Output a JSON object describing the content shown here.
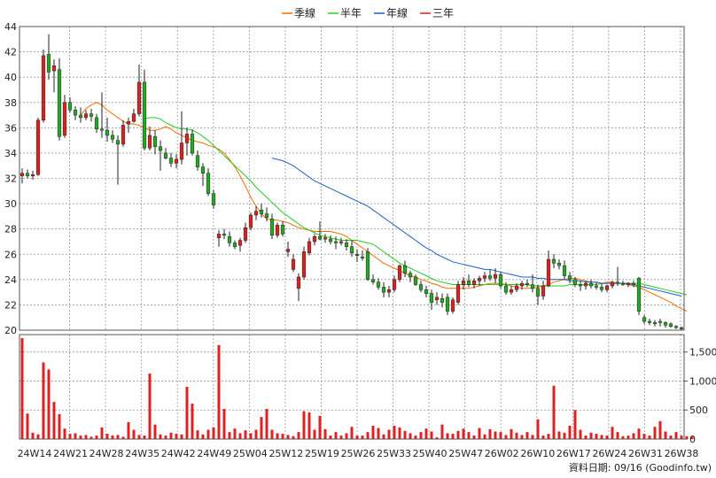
{
  "chart_data": [
    {
      "type": "candlestick",
      "title": "",
      "legend": {
        "placement": "top-center",
        "entries": [
          {
            "name": "季線",
            "color": "#ff6a00"
          },
          {
            "name": "半年",
            "color": "#22cc22"
          },
          {
            "name": "年線",
            "color": "#1a5fcc"
          },
          {
            "name": "三年",
            "color": "#e02020"
          }
        ]
      },
      "ylim": [
        20,
        44
      ],
      "yticks": [
        20,
        22,
        24,
        26,
        28,
        30,
        32,
        34,
        36,
        38,
        40,
        42,
        44
      ],
      "grid": true,
      "x_labels": [
        "24W14",
        "24W21",
        "24W28",
        "24W35",
        "24W42",
        "24W49",
        "25W04",
        "25W12",
        "25W19",
        "25W26",
        "25W33",
        "25W40",
        "25W47",
        "26W02",
        "26W10",
        "26W17",
        "26W24",
        "26W31",
        "26W38"
      ],
      "candles": [
        [
          32.2,
          32.8,
          31.6,
          32.4
        ],
        [
          32.4,
          32.7,
          32.0,
          32.2
        ],
        [
          32.2,
          32.6,
          31.9,
          32.3
        ],
        [
          32.3,
          36.8,
          32.2,
          36.6
        ],
        [
          36.6,
          42.2,
          36.4,
          41.7
        ],
        [
          41.8,
          43.4,
          39.8,
          40.4
        ],
        [
          40.5,
          41.4,
          38.8,
          40.9
        ],
        [
          40.6,
          41.5,
          35.0,
          35.3
        ],
        [
          35.4,
          38.6,
          35.2,
          38.0
        ],
        [
          38.0,
          38.4,
          37.2,
          37.4
        ],
        [
          37.4,
          37.7,
          36.6,
          37.0
        ],
        [
          37.0,
          37.6,
          36.4,
          36.8
        ],
        [
          36.8,
          37.4,
          36.6,
          37.1
        ],
        [
          37.1,
          37.5,
          36.5,
          36.9
        ],
        [
          36.8,
          37.1,
          35.6,
          35.9
        ],
        [
          35.9,
          38.8,
          35.2,
          35.8
        ],
        [
          35.8,
          36.8,
          34.9,
          35.4
        ],
        [
          35.4,
          35.8,
          34.8,
          35.1
        ],
        [
          35.0,
          35.4,
          31.5,
          34.7
        ],
        [
          34.7,
          36.6,
          34.5,
          36.2
        ],
        [
          36.3,
          36.8,
          35.6,
          36.5
        ],
        [
          36.5,
          37.5,
          36.4,
          37.1
        ],
        [
          37.1,
          41.0,
          36.9,
          39.6
        ],
        [
          39.6,
          40.6,
          34.2,
          34.4
        ],
        [
          34.4,
          36.1,
          34.2,
          35.4
        ],
        [
          35.3,
          35.8,
          33.9,
          34.5
        ],
        [
          34.5,
          35.0,
          32.6,
          34.2
        ],
        [
          34.0,
          34.4,
          33.5,
          33.6
        ],
        [
          33.6,
          34.0,
          32.9,
          33.2
        ],
        [
          33.2,
          33.9,
          32.8,
          33.5
        ],
        [
          33.5,
          37.3,
          33.1,
          34.8
        ],
        [
          34.8,
          36.0,
          33.8,
          35.5
        ],
        [
          35.5,
          35.9,
          33.8,
          34.0
        ],
        [
          33.8,
          34.2,
          32.6,
          32.9
        ],
        [
          32.9,
          33.2,
          31.4,
          32.4
        ],
        [
          32.4,
          32.8,
          30.6,
          30.8
        ],
        [
          30.8,
          31.1,
          29.6,
          29.9
        ],
        [
          27.3,
          27.9,
          26.6,
          27.6
        ],
        [
          27.6,
          28.0,
          27.2,
          27.5
        ],
        [
          27.4,
          27.8,
          26.6,
          26.9
        ],
        [
          26.9,
          27.1,
          26.4,
          26.6
        ],
        [
          26.7,
          27.3,
          26.2,
          27.1
        ],
        [
          27.1,
          28.5,
          26.9,
          28.1
        ],
        [
          28.1,
          29.3,
          27.9,
          29.1
        ],
        [
          29.1,
          29.8,
          28.7,
          29.4
        ],
        [
          29.5,
          30.0,
          28.9,
          29.2
        ],
        [
          29.2,
          29.7,
          28.6,
          28.9
        ],
        [
          28.8,
          29.2,
          27.2,
          27.5
        ],
        [
          27.5,
          28.5,
          27.3,
          28.3
        ],
        [
          28.3,
          28.6,
          27.4,
          27.6
        ],
        [
          26.2,
          27.0,
          25.8,
          26.4
        ],
        [
          24.8,
          26.0,
          24.6,
          25.6
        ],
        [
          23.3,
          24.5,
          22.3,
          24.2
        ],
        [
          24.2,
          26.6,
          24.0,
          26.2
        ],
        [
          26.1,
          27.3,
          25.9,
          27.0
        ],
        [
          27.0,
          27.6,
          26.7,
          27.4
        ],
        [
          27.4,
          28.6,
          27.1,
          27.2
        ],
        [
          27.2,
          27.6,
          26.9,
          27.3
        ],
        [
          27.2,
          27.5,
          26.8,
          27.0
        ],
        [
          27.0,
          27.4,
          26.4,
          26.9
        ],
        [
          26.9,
          27.3,
          26.7,
          27.0
        ],
        [
          26.9,
          27.2,
          26.3,
          26.6
        ],
        [
          26.6,
          27.1,
          25.8,
          26.1
        ],
        [
          26.0,
          26.4,
          25.4,
          25.9
        ],
        [
          25.8,
          26.3,
          25.5,
          25.7
        ],
        [
          26.2,
          26.5,
          23.9,
          24.0
        ],
        [
          24.0,
          24.4,
          23.6,
          23.8
        ],
        [
          23.8,
          24.1,
          23.2,
          23.4
        ],
        [
          23.4,
          23.8,
          22.6,
          23.0
        ],
        [
          23.0,
          23.5,
          22.6,
          23.2
        ],
        [
          23.2,
          24.3,
          23.0,
          24.0
        ],
        [
          24.0,
          25.2,
          23.8,
          25.1
        ],
        [
          25.1,
          25.5,
          24.2,
          24.5
        ],
        [
          24.5,
          24.7,
          23.8,
          24.2
        ],
        [
          24.2,
          24.4,
          23.5,
          23.6
        ],
        [
          23.6,
          23.9,
          23.0,
          23.2
        ],
        [
          23.2,
          23.5,
          22.6,
          22.9
        ],
        [
          22.9,
          23.2,
          21.6,
          22.2
        ],
        [
          22.4,
          23.0,
          22.0,
          22.6
        ],
        [
          22.5,
          22.9,
          21.8,
          22.2
        ],
        [
          22.6,
          22.9,
          21.2,
          21.5
        ],
        [
          21.5,
          22.6,
          21.3,
          22.4
        ],
        [
          22.2,
          23.9,
          22.0,
          23.6
        ],
        [
          23.6,
          24.2,
          23.2,
          23.9
        ],
        [
          23.9,
          24.4,
          23.4,
          23.6
        ],
        [
          23.6,
          24.1,
          23.3,
          23.9
        ],
        [
          23.9,
          24.3,
          23.5,
          24.1
        ],
        [
          24.1,
          24.6,
          23.8,
          24.3
        ],
        [
          24.3,
          24.8,
          23.9,
          24.1
        ],
        [
          24.1,
          24.9,
          23.7,
          24.4
        ],
        [
          24.4,
          24.6,
          23.3,
          23.5
        ],
        [
          23.5,
          23.8,
          22.8,
          23.0
        ],
        [
          23.0,
          23.5,
          22.8,
          23.2
        ],
        [
          23.2,
          23.7,
          23.0,
          23.5
        ],
        [
          23.5,
          23.9,
          23.2,
          23.7
        ],
        [
          23.7,
          24.0,
          23.4,
          23.6
        ],
        [
          23.6,
          24.4,
          23.0,
          23.3
        ],
        [
          23.3,
          23.6,
          22.0,
          22.7
        ],
        [
          22.7,
          23.9,
          22.4,
          23.5
        ],
        [
          23.5,
          26.3,
          23.4,
          25.6
        ],
        [
          25.6,
          26.0,
          24.9,
          25.3
        ],
        [
          25.3,
          25.6,
          24.8,
          25.1
        ],
        [
          25.1,
          25.5,
          24.0,
          24.3
        ],
        [
          24.3,
          24.6,
          23.7,
          24.0
        ],
        [
          24.0,
          24.2,
          23.4,
          23.6
        ],
        [
          23.6,
          23.9,
          23.1,
          23.5
        ],
        [
          23.5,
          23.9,
          23.2,
          23.7
        ],
        [
          23.7,
          24.0,
          23.3,
          23.5
        ],
        [
          23.5,
          23.8,
          23.2,
          23.4
        ],
        [
          23.4,
          23.7,
          23.0,
          23.2
        ],
        [
          23.2,
          23.6,
          23.0,
          23.5
        ],
        [
          23.5,
          23.9,
          23.3,
          23.8
        ],
        [
          23.8,
          25.0,
          23.5,
          23.7
        ],
        [
          23.7,
          23.9,
          23.5,
          23.6
        ],
        [
          23.6,
          23.8,
          23.4,
          23.7
        ],
        [
          23.7,
          23.9,
          23.4,
          23.6
        ],
        [
          24.1,
          24.2,
          21.2,
          21.5
        ],
        [
          21.0,
          21.2,
          20.5,
          20.7
        ],
        [
          20.7,
          20.9,
          20.4,
          20.6
        ],
        [
          20.6,
          20.8,
          20.3,
          20.5
        ],
        [
          20.7,
          20.9,
          20.3,
          20.6
        ],
        [
          20.6,
          20.7,
          20.2,
          20.4
        ],
        [
          20.5,
          20.6,
          20.2,
          20.3
        ],
        [
          20.3,
          20.4,
          20.1,
          20.2
        ],
        [
          20.2,
          20.3,
          20.0,
          20.1
        ]
      ],
      "series": [
        {
          "name": "季線",
          "color": "#ff6a00",
          "start": 11,
          "values": [
            37.0,
            37.5,
            37.8,
            38.0,
            37.8,
            37.4,
            37.1,
            36.8,
            36.5,
            36.3,
            36.3,
            36.2,
            36.0,
            35.8,
            35.8,
            35.9,
            36.1,
            35.9,
            35.6,
            35.4,
            35.2,
            35.0,
            34.9,
            34.8,
            34.6,
            34.5,
            34.3,
            34.0,
            33.5,
            32.9,
            32.2,
            31.4,
            30.5,
            29.8,
            29.2,
            28.8,
            28.7,
            28.7,
            28.6,
            28.5,
            28.3,
            28.1,
            28.0,
            27.9,
            27.8,
            27.8,
            27.8,
            27.8,
            27.7,
            27.6,
            27.4,
            27.1,
            26.8,
            26.5,
            26.2,
            25.9,
            25.6,
            25.3,
            25.1,
            24.9,
            24.7,
            24.5,
            24.3,
            24.2,
            24.0,
            23.9,
            23.7,
            23.6,
            23.4,
            23.3,
            23.3,
            23.3,
            23.3,
            23.3,
            23.4,
            23.5,
            23.6,
            23.7,
            23.7,
            23.7,
            23.6,
            23.5,
            23.4,
            23.3,
            23.3,
            23.3,
            23.4,
            23.5,
            23.6,
            23.8,
            23.9,
            24.0,
            24.1,
            24.1,
            24.0,
            23.9,
            23.8,
            23.8,
            23.7,
            23.8,
            23.8,
            23.7,
            23.7,
            23.6,
            23.5,
            23.4,
            23.2,
            23.0,
            22.8,
            22.6,
            22.4,
            22.2,
            21.9,
            21.7,
            21.5
          ]
        },
        {
          "name": "半年",
          "color": "#22cc22",
          "start": 23,
          "values": [
            36.7,
            36.8,
            36.8,
            36.7,
            36.4,
            36.2,
            36.0,
            35.9,
            35.9,
            35.8,
            35.6,
            35.3,
            35.0,
            34.6,
            34.2,
            33.8,
            33.4,
            33.0,
            32.6,
            32.2,
            31.8,
            31.3,
            30.9,
            30.5,
            30.1,
            29.7,
            29.3,
            29.0,
            28.7,
            28.4,
            28.1,
            27.9,
            27.7,
            27.5,
            27.4,
            27.3,
            27.2,
            27.1,
            27.1,
            27.1,
            27.1,
            27.0,
            26.9,
            26.8,
            26.5,
            26.2,
            25.9,
            25.6,
            25.3,
            25.1,
            24.9,
            24.7,
            24.5,
            24.3,
            24.1,
            23.9,
            23.8,
            23.7,
            23.6,
            23.6,
            23.6,
            23.6,
            23.6,
            23.6,
            23.6,
            23.6,
            23.6,
            23.6,
            23.6,
            23.6,
            23.6,
            23.6,
            23.6,
            23.5,
            23.5,
            23.5,
            23.5,
            23.5,
            23.5,
            23.5,
            23.6,
            23.6,
            23.6,
            23.6,
            23.6,
            23.6,
            23.7,
            23.7,
            23.7,
            23.7,
            23.7,
            23.7,
            23.7,
            23.7,
            23.6,
            23.5,
            23.4,
            23.3,
            23.2,
            23.1,
            23.0,
            22.9,
            22.8
          ]
        },
        {
          "name": "年線",
          "color": "#1a5fcc",
          "start": 47,
          "values": [
            33.6,
            33.5,
            33.4,
            33.2,
            33.0,
            32.7,
            32.4,
            32.1,
            31.8,
            31.6,
            31.4,
            31.2,
            31.0,
            30.8,
            30.6,
            30.4,
            30.2,
            30.0,
            29.8,
            29.5,
            29.2,
            28.9,
            28.6,
            28.3,
            28.0,
            27.7,
            27.4,
            27.1,
            26.8,
            26.5,
            26.3,
            26.0,
            25.8,
            25.6,
            25.4,
            25.3,
            25.2,
            25.1,
            25.0,
            24.9,
            24.8,
            24.8,
            24.7,
            24.6,
            24.5,
            24.4,
            24.3,
            24.2,
            24.2,
            24.2,
            24.1,
            24.1,
            24.0,
            24.0,
            24.0,
            24.0,
            23.9,
            23.9,
            23.9,
            23.8,
            23.8,
            23.8,
            23.7,
            23.7,
            23.7,
            23.7,
            23.7,
            23.7,
            23.6,
            23.5,
            23.4,
            23.3,
            23.2,
            23.1,
            23.0,
            22.9,
            22.8,
            22.7
          ]
        }
      ],
      "volume": {
        "yticks": [
          0,
          500,
          1000,
          1500
        ],
        "tick_labels": [
          "0",
          "500",
          "1,000",
          "1,500"
        ],
        "ylim": [
          0,
          1800
        ],
        "color": "#e02020",
        "values": [
          1740,
          440,
          110,
          80,
          1320,
          1200,
          640,
          430,
          180,
          90,
          100,
          60,
          70,
          40,
          60,
          200,
          90,
          60,
          70,
          40,
          290,
          160,
          70,
          60,
          1130,
          250,
          80,
          60,
          110,
          90,
          80,
          900,
          610,
          150,
          80,
          160,
          200,
          1620,
          520,
          120,
          180,
          100,
          150,
          100,
          160,
          380,
          520,
          160,
          100,
          90,
          70,
          50,
          120,
          480,
          460,
          160,
          400,
          170,
          60,
          120,
          60,
          100,
          210,
          60,
          60,
          120,
          230,
          190,
          80,
          160,
          230,
          200,
          140,
          100,
          60,
          120,
          180,
          130,
          30,
          250,
          100,
          90,
          140,
          180,
          120,
          60,
          190,
          80,
          170,
          130,
          120,
          70,
          170,
          110,
          70,
          120,
          70,
          340,
          60,
          90,
          920,
          130,
          110,
          230,
          500,
          160,
          60,
          110,
          90,
          70,
          60,
          210,
          120,
          50,
          60,
          100,
          180,
          90,
          60,
          210,
          310,
          130,
          60,
          120,
          60,
          50,
          40
        ]
      },
      "credit": "資料日期: 09/16  (Goodinfo.tw)"
    }
  ]
}
